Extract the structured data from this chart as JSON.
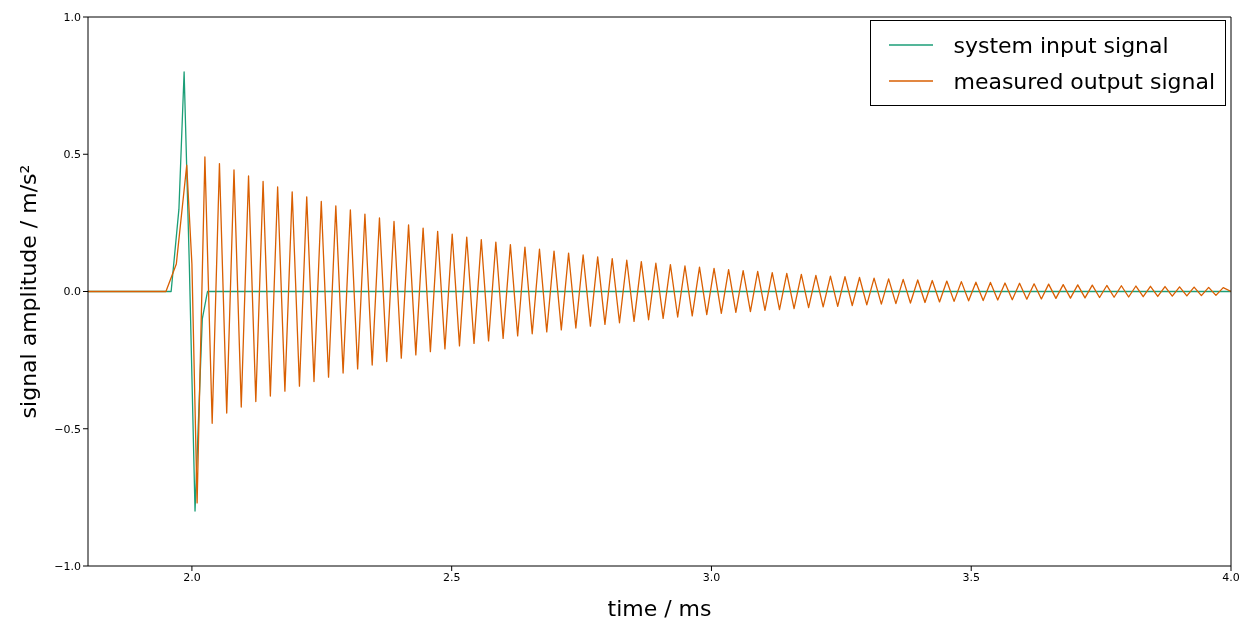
{
  "chart_data": {
    "type": "line",
    "xlabel": "time / ms",
    "ylabel": "signal amplitude / m/s²",
    "xlim": [
      1.8,
      4.0
    ],
    "ylim": [
      -1.0,
      1.0
    ],
    "xticks": [
      {
        "value": 2,
        "label": "2.0"
      },
      {
        "value": 2.5,
        "label": "2.5"
      },
      {
        "value": 3,
        "label": "3.0"
      },
      {
        "value": 3.5,
        "label": "3.5"
      },
      {
        "value": 4,
        "label": "4.0"
      }
    ],
    "yticks": [
      {
        "value": -1,
        "label": "−1.0"
      },
      {
        "value": -0.5,
        "label": "−0.5"
      },
      {
        "value": 0,
        "label": "0.0"
      },
      {
        "value": 0.5,
        "label": "0.5"
      },
      {
        "value": 1,
        "label": "1.0"
      }
    ],
    "grid": false,
    "legend": "top right",
    "marker": "none",
    "line_style": "solid",
    "series": [
      {
        "name": "system input signal",
        "color": "#1b9e77",
        "x": [
          1.8,
          1.96,
          1.975,
          1.985,
          1.995,
          2.006,
          2.02,
          2.03,
          4.0
        ],
        "values": [
          0,
          0,
          0.3,
          0.8,
          0.1,
          -0.8,
          -0.1,
          0,
          0
        ]
      },
      {
        "name": "measured output signal",
        "color": "#d95f02",
        "x": [
          1.8,
          1.95,
          1.97,
          1.99,
          2.0,
          2.01,
          2.025,
          2.039,
          2.053,
          2.067,
          2.081,
          2.095,
          2.109,
          2.123,
          2.137,
          2.151,
          2.165,
          2.179,
          2.193,
          2.207,
          2.221,
          2.235,
          2.249,
          2.263,
          2.277,
          2.291,
          2.305,
          2.319,
          2.333,
          2.347,
          2.361,
          2.375,
          2.389,
          2.403,
          2.417,
          2.431,
          2.445,
          2.459,
          2.473,
          2.487,
          2.501,
          2.515,
          2.529,
          2.543,
          2.557,
          2.571,
          2.585,
          2.599,
          2.613,
          2.627,
          2.641,
          2.655,
          2.669,
          2.683,
          2.697,
          2.711,
          2.725,
          2.739,
          2.753,
          2.767,
          2.781,
          2.795,
          2.809,
          2.823,
          2.837,
          2.851,
          2.865,
          2.879,
          2.893,
          2.907,
          2.921,
          2.935,
          2.949,
          2.963,
          2.977,
          2.991,
          3.005,
          3.019,
          3.033,
          3.047,
          3.061,
          3.075,
          3.089,
          3.103,
          3.117,
          3.131,
          3.145,
          3.159,
          3.173,
          3.187,
          3.201,
          3.215,
          3.229,
          3.243,
          3.257,
          3.271,
          3.285,
          3.299,
          3.313,
          3.327,
          3.341,
          3.355,
          3.369,
          3.383,
          3.397,
          3.411,
          3.425,
          3.439,
          3.453,
          3.467,
          3.481,
          3.495,
          3.509,
          3.523,
          3.537,
          3.551,
          3.565,
          3.579,
          3.593,
          3.607,
          3.621,
          3.635,
          3.649,
          3.663,
          3.677,
          3.691,
          3.705,
          3.719,
          3.733,
          3.747,
          3.761,
          3.775,
          3.789,
          3.803,
          3.817,
          3.831,
          3.845,
          3.859,
          3.873,
          3.887,
          3.901,
          3.915,
          3.929,
          3.943,
          3.957,
          3.971,
          3.985,
          4.0
        ],
        "values": [
          0,
          0,
          0.1,
          0.46,
          0.1,
          -0.77,
          0.49,
          -0.48,
          0.466,
          -0.443,
          0.443,
          -0.421,
          0.421,
          -0.401,
          0.401,
          -0.381,
          0.381,
          -0.363,
          0.363,
          -0.345,
          0.345,
          -0.328,
          0.328,
          -0.312,
          0.312,
          -0.297,
          0.297,
          -0.282,
          0.282,
          -0.268,
          0.268,
          -0.255,
          0.255,
          -0.243,
          0.243,
          -0.231,
          0.231,
          -0.219,
          0.219,
          -0.209,
          0.209,
          -0.198,
          0.198,
          -0.189,
          0.189,
          -0.18,
          0.18,
          -0.171,
          0.171,
          -0.162,
          0.162,
          -0.154,
          0.154,
          -0.147,
          0.147,
          -0.14,
          0.14,
          -0.133,
          0.133,
          -0.126,
          0.126,
          -0.12,
          0.12,
          -0.114,
          0.114,
          -0.109,
          0.109,
          -0.103,
          0.103,
          -0.098,
          0.098,
          -0.093,
          0.093,
          -0.089,
          0.089,
          -0.084,
          0.084,
          -0.08,
          0.08,
          -0.076,
          0.076,
          -0.073,
          0.073,
          -0.069,
          0.069,
          -0.066,
          0.066,
          -0.062,
          0.062,
          -0.059,
          0.059,
          -0.056,
          0.056,
          -0.054,
          0.054,
          -0.051,
          0.051,
          -0.049,
          0.049,
          -0.046,
          0.046,
          -0.044,
          0.044,
          -0.042,
          0.042,
          -0.04,
          0.04,
          -0.038,
          0.038,
          -0.036,
          0.036,
          -0.034,
          0.034,
          -0.033,
          0.033,
          -0.031,
          0.031,
          -0.03,
          0.03,
          -0.028,
          0.028,
          -0.027,
          0.027,
          -0.025,
          0.025,
          -0.024,
          0.024,
          -0.023,
          0.023,
          -0.022,
          0.022,
          -0.021,
          0.021,
          -0.02,
          0.02,
          -0.019,
          0.019,
          -0.018,
          0.018,
          -0.017,
          0.017,
          -0.016,
          0.016,
          -0.015,
          0.015,
          -0.014,
          0.014,
          0
        ]
      }
    ]
  }
}
